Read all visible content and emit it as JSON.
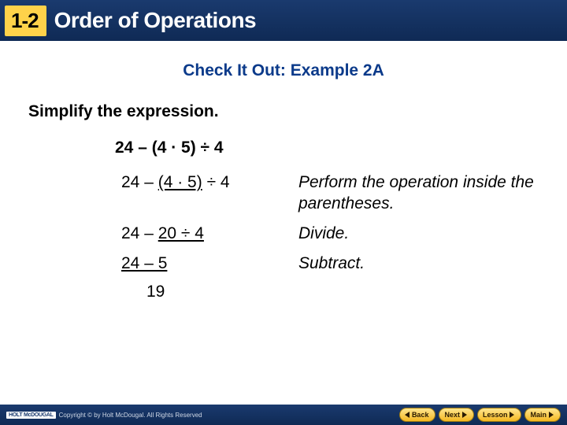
{
  "header": {
    "lesson_number": "1-2",
    "title": "Order of Operations"
  },
  "subtitle": "Check It Out: Example 2A",
  "instruction": "Simplify the expression.",
  "problem": "24 – (4 · 5) ÷ 4",
  "steps": [
    {
      "expr_pre": "24 – ",
      "expr_ul": "(4 · 5)",
      "expr_post": " ÷ 4",
      "note": "Perform the operation inside the parentheses."
    },
    {
      "expr_pre": "24 – ",
      "expr_ul": "20 ÷ 4",
      "expr_post": "",
      "note": "Divide."
    },
    {
      "expr_pre": "",
      "expr_ul": "24 – 5",
      "expr_post": "",
      "note": "Subtract."
    }
  ],
  "answer": "19",
  "footer": {
    "brand": "HOLT McDOUGAL",
    "copyright": "Copyright © by Holt McDougal. All Rights Reserved",
    "buttons": {
      "back": "Back",
      "next": "Next",
      "lesson": "Lesson",
      "main": "Main"
    }
  },
  "colors": {
    "header_bg_top": "#1a3a6e",
    "header_bg_bottom": "#0f2a55",
    "badge_bg": "#ffd24a",
    "subtitle_color": "#0b3a8a",
    "btn_bg_top": "#ffe690",
    "btn_bg_bottom": "#f5b820"
  }
}
